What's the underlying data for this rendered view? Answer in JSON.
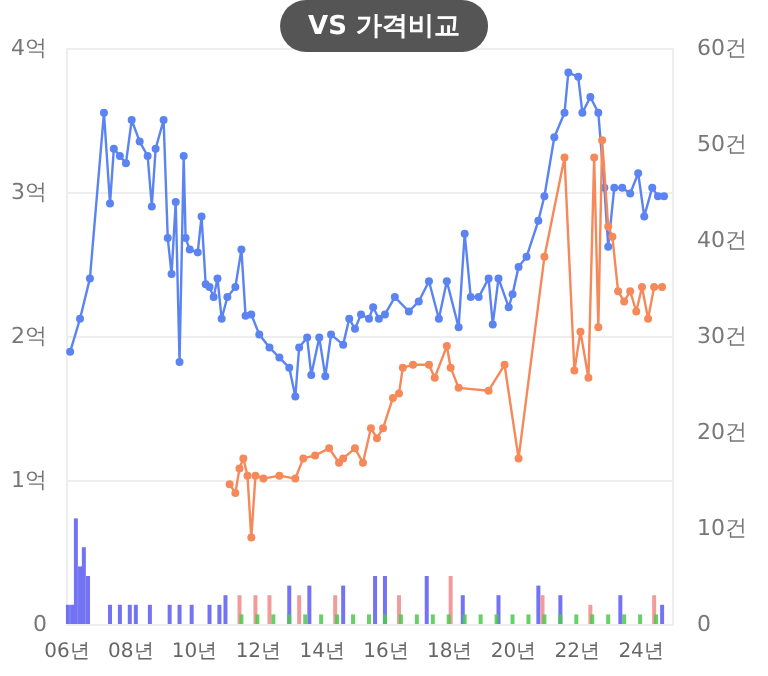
{
  "chart_data": {
    "type": "line",
    "title": "VS 가격비교",
    "marker": "circle",
    "line_style": "solid",
    "grid": "y",
    "xlim": [
      6,
      25
    ],
    "xticks": [
      {
        "value": 6,
        "label": "06년"
      },
      {
        "value": 8,
        "label": "08년"
      },
      {
        "value": 10,
        "label": "10년"
      },
      {
        "value": 12,
        "label": "12년"
      },
      {
        "value": 14,
        "label": "14년"
      },
      {
        "value": 16,
        "label": "16년"
      },
      {
        "value": 18,
        "label": "18년"
      },
      {
        "value": 20,
        "label": "20년"
      },
      {
        "value": 22,
        "label": "22년"
      },
      {
        "value": 24,
        "label": "24년"
      }
    ],
    "ylim": [
      0,
      4
    ],
    "yticks": [
      0,
      {
        "value": 1,
        "label": "1억"
      },
      {
        "value": 2,
        "label": "2억"
      },
      {
        "value": 3,
        "label": "3억"
      },
      {
        "value": 4,
        "label": "4억"
      }
    ],
    "y2lim": [
      0,
      60
    ],
    "y2ticks": [
      0,
      {
        "value": 10,
        "label": "10건"
      },
      {
        "value": 20,
        "label": "20건"
      },
      {
        "value": 30,
        "label": "30건"
      },
      {
        "value": 40,
        "label": "40건"
      },
      {
        "value": 50,
        "label": "50건"
      },
      {
        "value": 60,
        "label": "60건"
      }
    ],
    "series": [
      {
        "type": "bar",
        "axis": "y2",
        "color": "#5a5af2",
        "x": [
          6.06,
          6.19,
          6.31,
          6.44,
          6.56,
          6.69,
          7.38,
          7.69,
          8,
          8.19,
          8.63,
          9.25,
          9.56,
          9.94,
          10.5,
          10.81,
          11,
          13,
          13.63,
          14.69,
          15.69,
          16,
          17.31,
          18.44,
          19.56,
          20.81,
          21.5,
          23.38,
          24.69
        ],
        "values": [
          2,
          2,
          11,
          6,
          8,
          5,
          2,
          2,
          2,
          2,
          2,
          2,
          2,
          2,
          2,
          2,
          3,
          4,
          4,
          4,
          5,
          5,
          5,
          3,
          3,
          4,
          3,
          3,
          2
        ]
      },
      {
        "type": "bar",
        "axis": "y2",
        "color": "#f08a8a",
        "x": [
          11.44,
          11.94,
          12.38,
          13.31,
          14.44,
          16.44,
          18.06,
          20.94,
          22.44,
          24.44
        ],
        "values": [
          3,
          3,
          3,
          3,
          3,
          3,
          5,
          3,
          2,
          3
        ]
      },
      {
        "type": "bar",
        "axis": "y2",
        "color": "#4cc94c",
        "x": [
          11.5,
          12,
          12.5,
          13,
          13.5,
          14,
          14.5,
          15,
          15.5,
          16,
          16.5,
          17,
          17.5,
          18,
          18.5,
          19,
          19.5,
          20,
          20.5,
          21,
          21.5,
          22,
          22.5,
          23,
          23.5,
          24,
          24.5
        ],
        "values": [
          1,
          1,
          1,
          1,
          1,
          1,
          1,
          1,
          1,
          1,
          1,
          1,
          1,
          1,
          1,
          1,
          1,
          1,
          1,
          1,
          1,
          1,
          1,
          1,
          1,
          1,
          1
        ]
      },
      {
        "color": "#5b84f2",
        "x": [
          6.13,
          6.44,
          6.75,
          7.19,
          7.38,
          7.5,
          7.69,
          7.88,
          8.06,
          8.31,
          8.56,
          8.69,
          8.81,
          9.06,
          9.19,
          9.31,
          9.44,
          9.56,
          9.69,
          9.75,
          9.88,
          10.13,
          10.25,
          10.38,
          10.5,
          10.63,
          10.75,
          10.88,
          11.06,
          11.31,
          11.5,
          11.63,
          11.81,
          12.06,
          12.38,
          12.69,
          13,
          13.19,
          13.31,
          13.56,
          13.69,
          13.94,
          14.13,
          14.31,
          14.69,
          14.88,
          15.06,
          15.25,
          15.5,
          15.63,
          15.81,
          16,
          16.31,
          16.75,
          17.06,
          17.38,
          17.69,
          17.94,
          18.31,
          18.5,
          18.69,
          18.94,
          19.25,
          19.38,
          19.56,
          19.88,
          20,
          20.19,
          20.44,
          20.81,
          21,
          21.31,
          21.63,
          21.75,
          22.06,
          22.19,
          22.44,
          22.69,
          22.88,
          23,
          23.19,
          23.44,
          23.69,
          23.94,
          24.13,
          24.38,
          24.56,
          24.75
        ],
        "values": [
          1.89,
          2.12,
          2.4,
          3.55,
          2.92,
          3.3,
          3.25,
          3.2,
          3.5,
          3.35,
          3.25,
          2.9,
          3.3,
          3.5,
          2.68,
          2.43,
          2.93,
          1.82,
          3.25,
          2.68,
          2.6,
          2.58,
          2.83,
          2.36,
          2.34,
          2.27,
          2.4,
          2.12,
          2.27,
          2.34,
          2.6,
          2.14,
          2.15,
          2.01,
          1.92,
          1.85,
          1.78,
          1.58,
          1.92,
          1.99,
          1.73,
          1.99,
          1.72,
          2.01,
          1.94,
          2.12,
          2.05,
          2.15,
          2.12,
          2.2,
          2.12,
          2.15,
          2.27,
          2.17,
          2.24,
          2.38,
          2.12,
          2.38,
          2.06,
          2.71,
          2.27,
          2.27,
          2.4,
          2.08,
          2.4,
          2.2,
          2.29,
          2.48,
          2.55,
          2.8,
          2.97,
          3.38,
          3.55,
          3.83,
          3.8,
          3.55,
          3.66,
          3.55,
          3.03,
          2.62,
          3.03,
          3.03,
          2.99,
          3.13,
          2.83,
          3.03,
          2.97,
          2.97
        ]
      },
      {
        "color": "#f5895a",
        "x": [
          11.13,
          11.31,
          11.44,
          11.56,
          11.69,
          11.81,
          11.94,
          12.19,
          12.69,
          13.19,
          13.44,
          13.81,
          14.25,
          14.56,
          14.69,
          15.06,
          15.31,
          15.56,
          15.75,
          15.94,
          16.25,
          16.44,
          16.56,
          16.88,
          17.38,
          17.56,
          17.94,
          18.06,
          18.31,
          19.25,
          19.75,
          20.19,
          21,
          21.63,
          21.94,
          22.13,
          22.38,
          22.56,
          22.69,
          22.81,
          23,
          23.13,
          23.31,
          23.5,
          23.69,
          23.88,
          24.06,
          24.25,
          24.44,
          24.69
        ],
        "values": [
          0.97,
          0.91,
          1.08,
          1.15,
          1.03,
          0.6,
          1.03,
          1.01,
          1.03,
          1.01,
          1.15,
          1.17,
          1.22,
          1.12,
          1.15,
          1.22,
          1.12,
          1.36,
          1.29,
          1.36,
          1.57,
          1.6,
          1.78,
          1.8,
          1.8,
          1.71,
          1.93,
          1.78,
          1.64,
          1.62,
          1.8,
          1.15,
          2.55,
          3.24,
          1.76,
          2.03,
          1.71,
          3.24,
          2.06,
          3.36,
          2.76,
          2.69,
          2.31,
          2.24,
          2.31,
          2.17,
          2.34,
          2.12,
          2.34,
          2.34
        ]
      }
    ]
  }
}
